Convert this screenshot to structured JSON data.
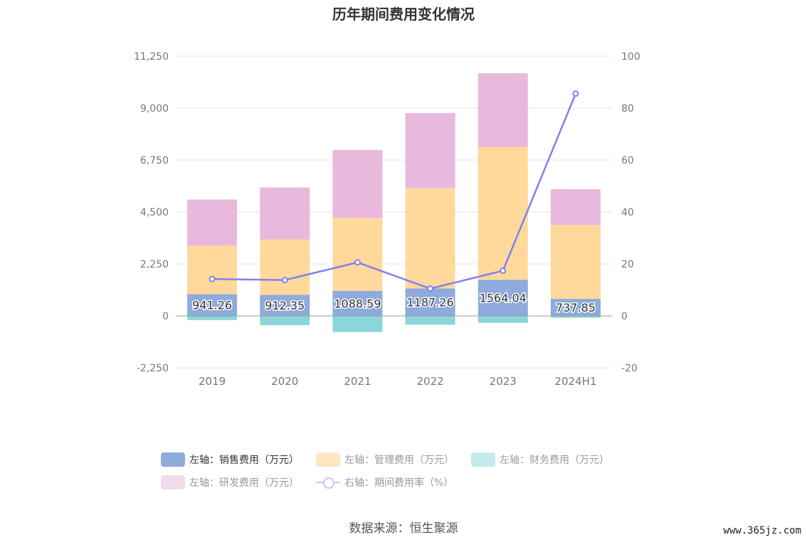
{
  "title": "历年期间费用变化情况",
  "source": "数据来源：恒生聚源",
  "watermark": "www.365jz.com",
  "legend": {
    "sales": "左轴：销售费用（万元）",
    "admin": "左轴：管理费用（万元）",
    "finance": "左轴：财务费用（万元）",
    "rd": "左轴：研发费用（万元）",
    "ratio": "右轴：期间费用率（%）"
  },
  "chart_data": {
    "type": "bar",
    "stacked": true,
    "categories": [
      "2019",
      "2020",
      "2021",
      "2022",
      "2023",
      "2024H1"
    ],
    "series": [
      {
        "name": "左轴：销售费用（万元）",
        "axis": "left",
        "color": "#8faadc",
        "values": [
          941.26,
          912.35,
          1088.59,
          1187.26,
          1564.04,
          737.85
        ]
      },
      {
        "name": "左轴：管理费用（万元）",
        "axis": "left",
        "color": "#ffd99b",
        "values": [
          2100,
          2400,
          3150,
          4350,
          5750,
          3200
        ]
      },
      {
        "name": "左轴：财务费用（万元）",
        "axis": "left",
        "color": "#8ad6d9",
        "values": [
          -180,
          -400,
          -700,
          -380,
          -300,
          -80
        ]
      },
      {
        "name": "左轴：研发费用（万元）",
        "axis": "left",
        "color": "#e8b9dc",
        "values": [
          2000,
          2250,
          2950,
          3250,
          3200,
          1550
        ]
      },
      {
        "name": "右轴：期间费用率（%）",
        "axis": "right",
        "type": "line",
        "color": "#8080ee",
        "values": [
          14.2,
          13.8,
          20.6,
          10.5,
          17.4,
          85.6
        ]
      }
    ],
    "data_labels": [
      "941.26",
      "912.35",
      "1088.59",
      "1187.26",
      "1564.04",
      "737.85"
    ],
    "y_left": {
      "min": -2250,
      "max": 11250,
      "ticks": [
        "-2,250",
        "0",
        "2,250",
        "4,500",
        "6,750",
        "9,000",
        "11,250"
      ],
      "tick_values": [
        -2250,
        0,
        2250,
        4500,
        6750,
        9000,
        11250
      ]
    },
    "y_right": {
      "min": -20,
      "max": 100,
      "ticks": [
        "-20",
        "0",
        "20",
        "40",
        "60",
        "80",
        "100"
      ],
      "tick_values": [
        -20,
        0,
        20,
        40,
        60,
        80,
        100
      ]
    },
    "grid": true,
    "legend_position": "bottom"
  }
}
